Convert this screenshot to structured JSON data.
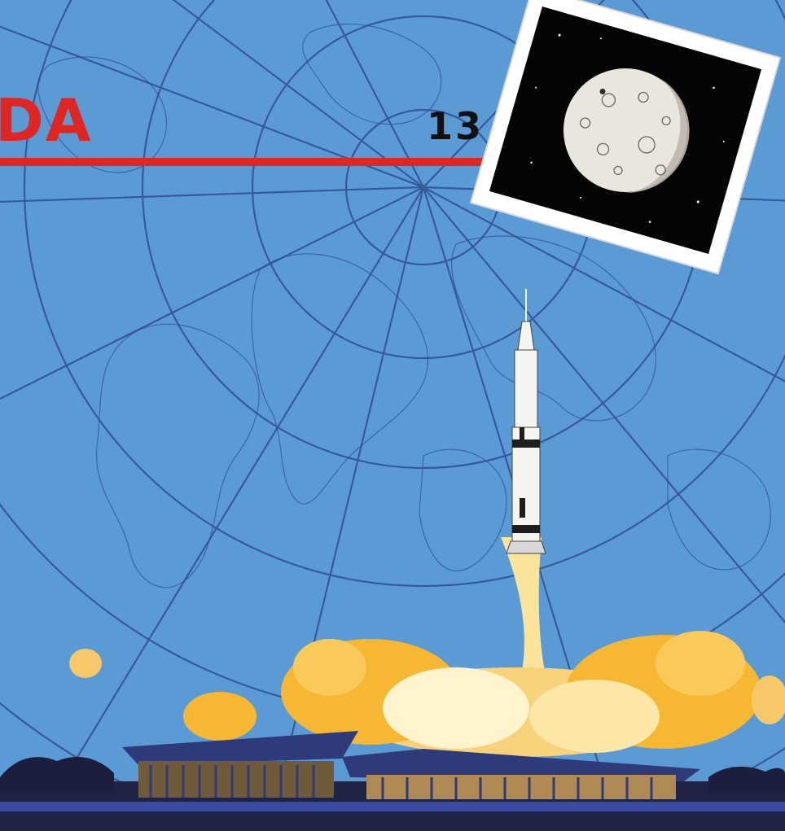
{
  "poster": {
    "title_fragment": "DA",
    "mission_number": "13",
    "credit": ""
  },
  "colors": {
    "sky": "#5b9bd5",
    "grid_lines": "#2f4f8f",
    "title_red": "#e02622",
    "rocket_white": "#f4f4f0",
    "plume_yellow": "#f6c34a",
    "building_navy": "#2e3a7a"
  },
  "icons": {
    "moon": "moon-photo-icon",
    "rocket": "rocket-icon"
  }
}
